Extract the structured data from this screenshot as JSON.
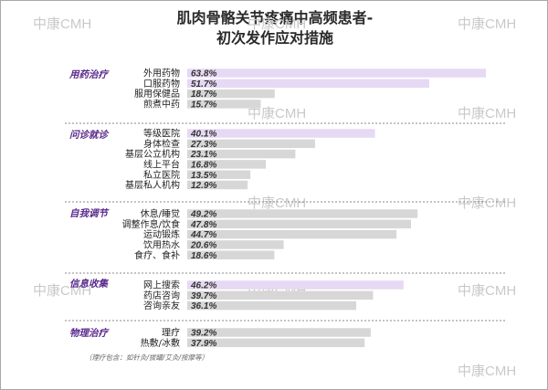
{
  "chart_data": {
    "type": "bar",
    "orientation": "horizontal",
    "title_line1": "肌肉骨骼关节疼痛中高频患者-",
    "title_line2": "初次发作应对措施",
    "unit": "%",
    "xlim": [
      0,
      70
    ],
    "groups": [
      {
        "category": "用药治疗",
        "items": [
          {
            "label": "外用药物",
            "value": 63.8,
            "display": "63.8%",
            "highlight": true
          },
          {
            "label": "口服药物",
            "value": 51.7,
            "display": "51.7%",
            "highlight": true
          },
          {
            "label": "服用保健品",
            "value": 18.7,
            "display": "18.7%",
            "highlight": false
          },
          {
            "label": "煎煮中药",
            "value": 15.7,
            "display": "15.7%",
            "highlight": false
          }
        ]
      },
      {
        "category": "问诊就诊",
        "items": [
          {
            "label": "等级医院",
            "value": 40.1,
            "display": "40.1%",
            "highlight": true
          },
          {
            "label": "身体检查",
            "value": 27.3,
            "display": "27.3%",
            "highlight": false
          },
          {
            "label": "基层公立机构",
            "value": 23.1,
            "display": "23.1%",
            "highlight": false
          },
          {
            "label": "线上平台",
            "value": 16.8,
            "display": "16.8%",
            "highlight": false
          },
          {
            "label": "私立医院",
            "value": 13.5,
            "display": "13.5%",
            "highlight": false
          },
          {
            "label": "基层私人机构",
            "value": 12.9,
            "display": "12.9%",
            "highlight": false
          }
        ]
      },
      {
        "category": "自我调节",
        "items": [
          {
            "label": "休息/睡觉",
            "value": 49.2,
            "display": "49.2%",
            "highlight": false
          },
          {
            "label": "调整作息/饮食",
            "value": 47.8,
            "display": "47.8%",
            "highlight": false
          },
          {
            "label": "运动锻炼",
            "value": 44.7,
            "display": "44.7%",
            "highlight": false
          },
          {
            "label": "饮用热水",
            "value": 20.6,
            "display": "20.6%",
            "highlight": false
          },
          {
            "label": "食疗、食补",
            "value": 18.6,
            "display": "18.6%",
            "highlight": false
          }
        ]
      },
      {
        "category": "信息收集",
        "items": [
          {
            "label": "网上搜索",
            "value": 46.2,
            "display": "46.2%",
            "highlight": true
          },
          {
            "label": "药店咨询",
            "value": 39.7,
            "display": "39.7%",
            "highlight": false
          },
          {
            "label": "咨询亲友",
            "value": 36.1,
            "display": "36.1%",
            "highlight": false
          }
        ]
      },
      {
        "category": "物理治疗",
        "items": [
          {
            "label": "理疗",
            "value": 39.2,
            "display": "39.2%",
            "highlight": false
          },
          {
            "label": "热敷/冰敷",
            "value": 37.9,
            "display": "37.9%",
            "highlight": false
          }
        ]
      }
    ],
    "note": "（理疗包含：如针灸/拔罐/艾灸/按摩等）",
    "watermark": "中康CMH"
  },
  "colors": {
    "bar_default": "#d7d7d7",
    "bar_highlight": "#e6d9f4",
    "category_text": "#5a2a8c",
    "separator": "#8a8a8a"
  }
}
